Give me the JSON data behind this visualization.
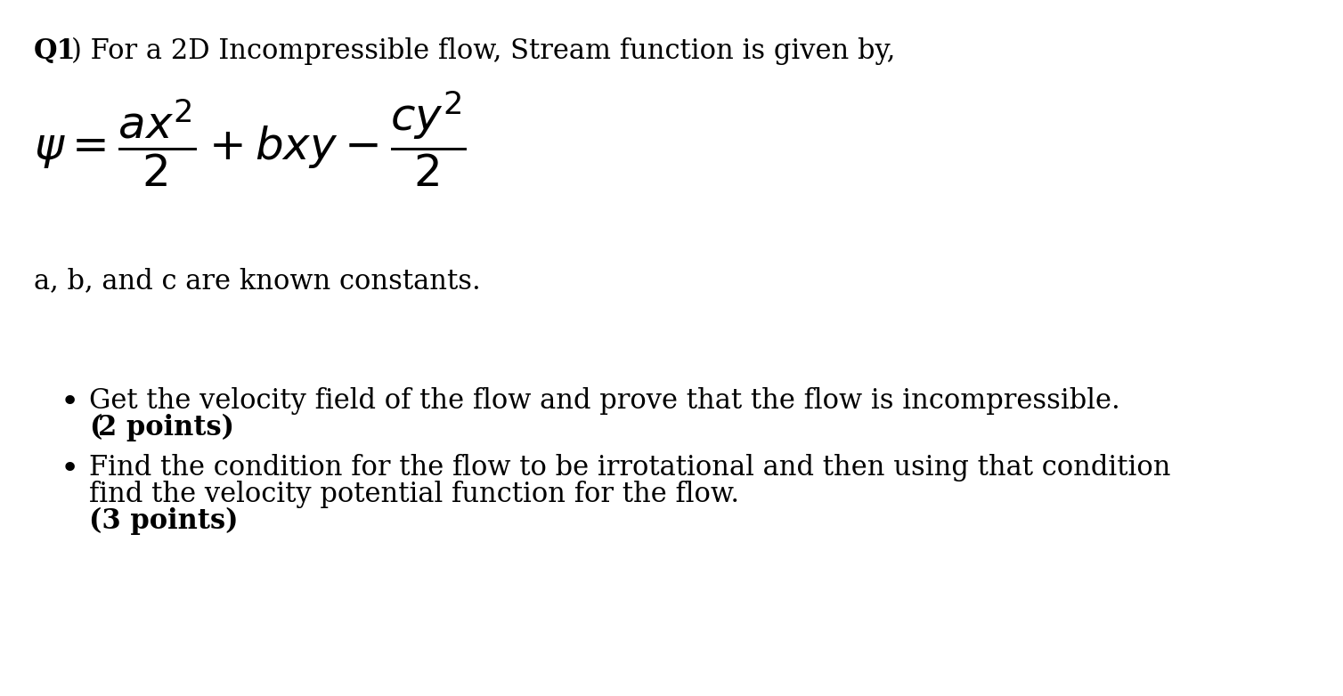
{
  "background_color": "#ffffff",
  "text_color": "#000000",
  "title_bold": "Q1",
  "title_rest": ") For a 2D Incompressible flow, Stream function is given by,",
  "constants_line": "a, b, and c are known constants.",
  "bullet1_line1": "Get the velocity field of the flow and prove that the flow is incompressible.",
  "bullet1_line2": "(2 points)",
  "bullet2_line1": "Find the condition for the flow to be irrotational and then using that condition",
  "bullet2_line2": "find the velocity potential function for the flow.",
  "bullet2_line3": "(3 points)",
  "fs_title": 22,
  "fs_body": 22,
  "fs_formula": 36,
  "fig_width": 15.08,
  "fig_height": 7.82,
  "dpi": 100
}
